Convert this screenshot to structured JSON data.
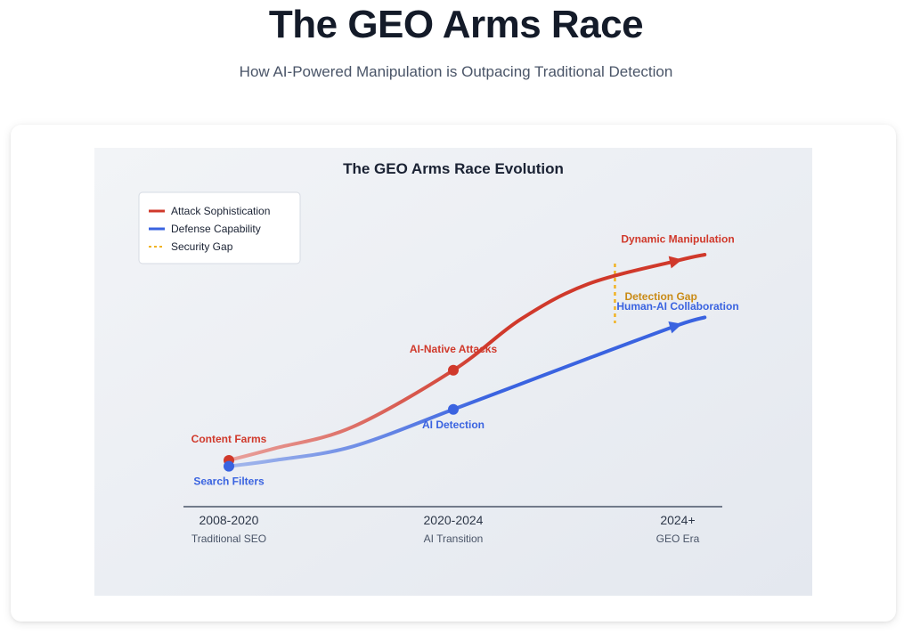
{
  "header": {
    "title": "The GEO Arms Race",
    "subtitle": "How AI-Powered Manipulation is Outpacing Traditional Detection"
  },
  "chart_data": {
    "type": "line",
    "title": "The GEO Arms Race Evolution",
    "xlabel": "",
    "ylabel": "",
    "x_categories": [
      {
        "label": "2008-2020",
        "sublabel": "Traditional SEO"
      },
      {
        "label": "2020-2024",
        "sublabel": "AI Transition"
      },
      {
        "label": "2024+",
        "sublabel": "GEO Era"
      }
    ],
    "legend": {
      "position": "top-left",
      "entries": [
        {
          "name": "Attack Sophistication",
          "color": "#d0392b",
          "style": "solid"
        },
        {
          "name": "Defense Capability",
          "color": "#3a63e0",
          "style": "solid"
        },
        {
          "name": "Security Gap",
          "color": "#f1b324",
          "style": "dashed"
        }
      ]
    },
    "series": [
      {
        "name": "Attack Sophistication",
        "color": "#d0392b",
        "points": [
          {
            "x": 0.0,
            "y": 5
          },
          {
            "x": 0.2,
            "y": 11
          },
          {
            "x": 0.55,
            "y": 22
          },
          {
            "x": 1.0,
            "y": 51
          },
          {
            "x": 1.3,
            "y": 77
          },
          {
            "x": 1.6,
            "y": 95
          },
          {
            "x": 2.0,
            "y": 107
          },
          {
            "x": 2.12,
            "y": 110
          }
        ],
        "milestones": [
          {
            "x": 0.0,
            "label": "Content Farms"
          },
          {
            "x": 1.0,
            "label": "AI-Native Attacks"
          },
          {
            "x": 2.0,
            "label": "Dynamic Manipulation"
          }
        ]
      },
      {
        "name": "Defense Capability",
        "color": "#3a63e0",
        "points": [
          {
            "x": 0.0,
            "y": 2
          },
          {
            "x": 0.2,
            "y": 5
          },
          {
            "x": 0.55,
            "y": 12
          },
          {
            "x": 1.0,
            "y": 31
          },
          {
            "x": 1.3,
            "y": 44
          },
          {
            "x": 1.6,
            "y": 57
          },
          {
            "x": 2.0,
            "y": 74
          },
          {
            "x": 2.12,
            "y": 78
          }
        ],
        "milestones": [
          {
            "x": 0.0,
            "label": "Search Filters"
          },
          {
            "x": 1.0,
            "label": "AI Detection"
          },
          {
            "x": 2.0,
            "label": "Human-AI Collaboration"
          }
        ]
      }
    ],
    "annotations": [
      {
        "type": "gap-line",
        "x": 1.72,
        "label": "Detection Gap",
        "color": "#f1b324",
        "text_color": "#c98b16"
      }
    ],
    "ylim": [
      -10,
      130
    ],
    "xlim": [
      -0.18,
      2.2
    ],
    "grid": false
  }
}
